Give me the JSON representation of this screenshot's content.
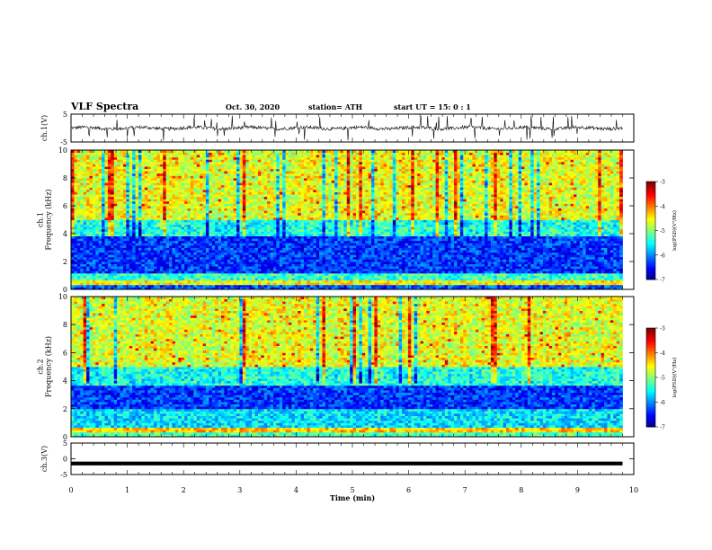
{
  "header": {
    "title": "VLF Spectra",
    "date": "Oct. 30, 2020",
    "station": "station= ATH",
    "start": "start  UT =   15: 0  : 1"
  },
  "colors": {
    "axis": "#000000",
    "trace": "#000000",
    "background": "#ffffff"
  },
  "chart_data": [
    {
      "type": "line",
      "panel": "ch1-waveform",
      "ylabel": "ch.1(V)",
      "ylim": [
        -5,
        5
      ],
      "yticks": [
        "5",
        "-5"
      ],
      "xlim": [
        0,
        10
      ],
      "description_values": "noisy waveform centred near 0 V with spikes to about ±3 V",
      "baseline": 0,
      "noise_amplitude": 0.6
    },
    {
      "type": "heatmap",
      "panel": "ch1-spectrogram",
      "ylabel": "ch.1\nFrequency  (kHz)",
      "ylim": [
        0,
        10
      ],
      "yticks": [
        "0",
        "2",
        "4",
        "6",
        "8",
        "10"
      ],
      "xlim": [
        0,
        9.8
      ],
      "bands": [
        {
          "from": 0.0,
          "to": 0.3,
          "level": -6.2
        },
        {
          "from": 0.3,
          "to": 0.6,
          "level": -4.5
        },
        {
          "from": 0.6,
          "to": 1.2,
          "level": -5.3
        },
        {
          "from": 1.2,
          "to": 3.8,
          "level": -6.3
        },
        {
          "from": 3.8,
          "to": 5.0,
          "level": -5.4
        },
        {
          "from": 5.0,
          "to": 10.0,
          "level": -4.6
        }
      ],
      "colorbar": {
        "label": "log(PSD)(V²/Hz)",
        "ticks": [
          "-3",
          "-4",
          "-5",
          "-6",
          "-7"
        ],
        "range": [
          -7,
          -3
        ]
      }
    },
    {
      "type": "heatmap",
      "panel": "ch2-spectrogram",
      "ylabel": "ch.2\nFrequency  (kHz)",
      "ylim": [
        0,
        10
      ],
      "yticks": [
        "0",
        "2",
        "4",
        "6",
        "8",
        "10"
      ],
      "xlim": [
        0,
        9.8
      ],
      "bands": [
        {
          "from": 0.0,
          "to": 0.4,
          "level": -5.2
        },
        {
          "from": 0.4,
          "to": 0.7,
          "level": -4.3
        },
        {
          "from": 0.7,
          "to": 2.0,
          "level": -5.6
        },
        {
          "from": 2.0,
          "to": 3.6,
          "level": -6.3
        },
        {
          "from": 3.6,
          "to": 5.0,
          "level": -5.4
        },
        {
          "from": 5.0,
          "to": 10.0,
          "level": -4.6
        }
      ],
      "colorbar": {
        "label": "log(PSD)(V²/Hz)",
        "ticks": [
          "-3",
          "-4",
          "-5",
          "-6",
          "-7"
        ],
        "range": [
          -7,
          -3
        ]
      }
    },
    {
      "type": "line",
      "panel": "ch3-waveform",
      "ylabel": "ch.3(V)",
      "ylim": [
        -5,
        5
      ],
      "yticks": [
        "5",
        "0",
        "-5"
      ],
      "xlim": [
        0,
        10
      ],
      "baseline": -1.5,
      "noise_amplitude": 0.3
    }
  ],
  "xaxis": {
    "label": "Time  (min)",
    "ticks": [
      "0",
      "1",
      "2",
      "3",
      "4",
      "5",
      "6",
      "7",
      "8",
      "9",
      "10"
    ],
    "range": [
      0,
      10
    ]
  }
}
